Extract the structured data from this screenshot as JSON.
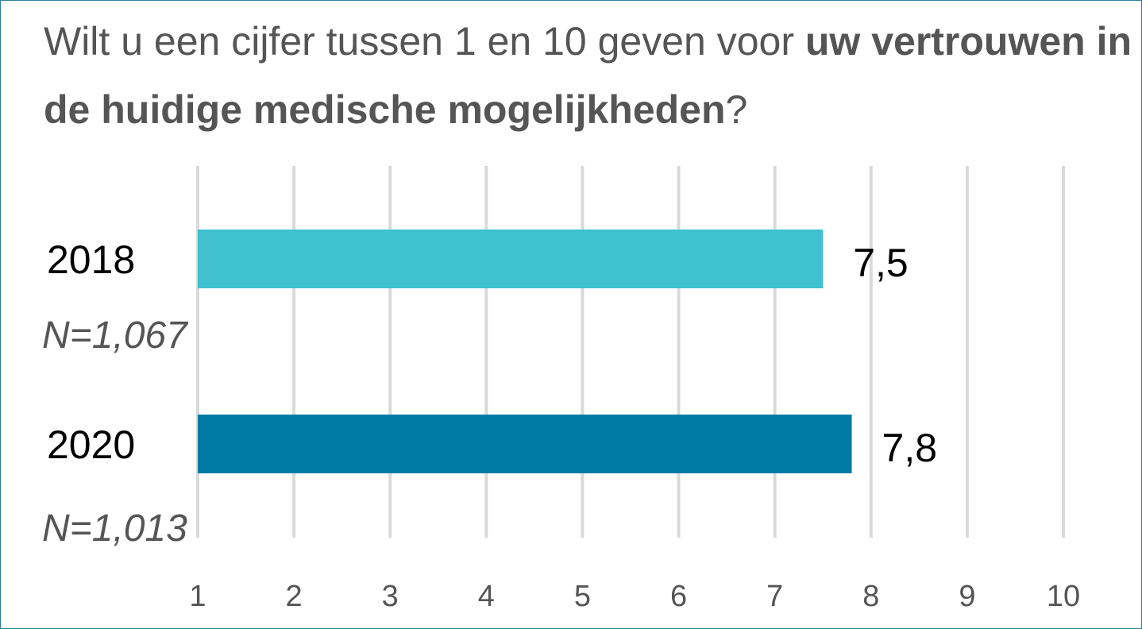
{
  "title": {
    "part1": "Wilt u een cijfer tussen 1 en 10 geven voor ",
    "bold": "uw vertrouwen in de huidige medische mogelijkheden",
    "part2": "?"
  },
  "chart_data": {
    "type": "bar",
    "orientation": "horizontal",
    "categories": [
      "2018",
      "2020"
    ],
    "sample_sizes": [
      "N=1,067",
      "N=1,013"
    ],
    "values": [
      7.5,
      7.8
    ],
    "value_labels": [
      "7,5",
      "7,8"
    ],
    "colors": [
      "#3fc1cf",
      "#007ba5"
    ],
    "xlim": [
      1,
      10
    ],
    "ticks": [
      "1",
      "2",
      "3",
      "4",
      "5",
      "6",
      "7",
      "8",
      "9",
      "10"
    ],
    "grid": true,
    "legend": "none"
  }
}
